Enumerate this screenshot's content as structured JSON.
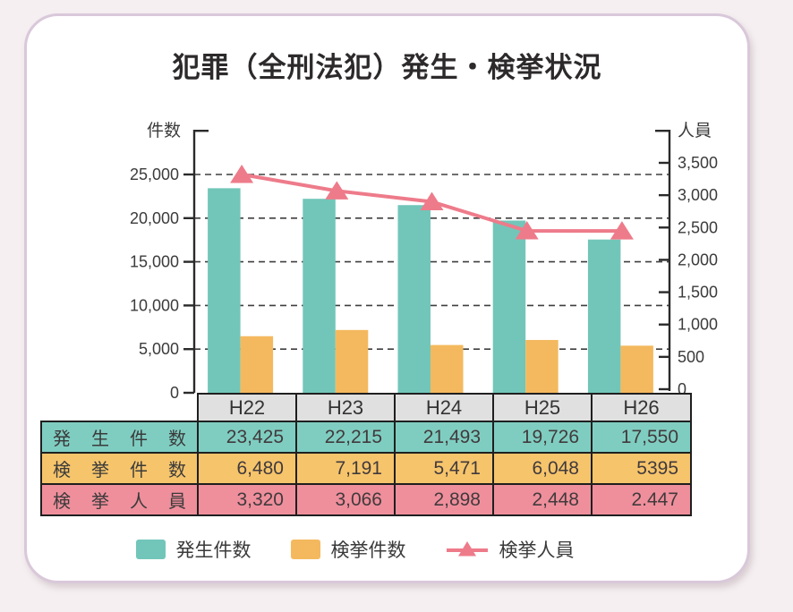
{
  "title": "犯罪（全刑法犯）発生・検挙状況",
  "chart_data": {
    "type": "bar+line",
    "categories": [
      "H22",
      "H23",
      "H24",
      "H25",
      "H26"
    ],
    "series": [
      {
        "key": "occurred-cases",
        "name": "発生件数",
        "type": "bar",
        "axis": "left",
        "color": "#72c6b9",
        "values": [
          23425,
          22215,
          21493,
          19726,
          17550
        ]
      },
      {
        "key": "cleared-cases",
        "name": "検挙件数",
        "type": "bar",
        "axis": "left",
        "color": "#f4b95e",
        "values": [
          6480,
          7191,
          5471,
          6048,
          5395
        ]
      },
      {
        "key": "cleared-persons",
        "name": "検挙人員",
        "type": "line",
        "axis": "right",
        "color": "#ee7b8a",
        "marker": "triangle-up",
        "values": [
          3320,
          3066,
          2898,
          2448,
          2447
        ]
      }
    ],
    "left_axis": {
      "label": "件数",
      "min": 0,
      "max": 25000,
      "step": 5000,
      "tick_labels": [
        "0",
        "5,000",
        "10,000",
        "15,000",
        "20,000",
        "25,000"
      ]
    },
    "right_axis": {
      "label": "人員",
      "min": 0,
      "max": 3500,
      "step": 500,
      "tick_labels": [
        "0",
        "500",
        "1,000",
        "1,500",
        "2,000",
        "2,500",
        "3,000",
        "3,500"
      ]
    },
    "grid": "horizontal-dashed-at-left-axis-ticks",
    "legend_position": "bottom"
  },
  "table": {
    "column_headers": [
      "H22",
      "H23",
      "H24",
      "H25",
      "H26"
    ],
    "rows": [
      {
        "key": "occurred-cases",
        "label": "発生件数",
        "color": "#7fcdc1",
        "values": [
          "23,425",
          "22,215",
          "21,493",
          "19,726",
          "17,550"
        ]
      },
      {
        "key": "cleared-cases",
        "label": "検挙件数",
        "color": "#f6c46b",
        "values": [
          "6,480",
          "7,191",
          "5,471",
          "6,048",
          "5395"
        ]
      },
      {
        "key": "cleared-persons",
        "label": "検挙人員",
        "color": "#ef8f9c",
        "values": [
          "3,320",
          "3,066",
          "2,898",
          "2,448",
          "2.447"
        ]
      }
    ]
  },
  "legend": {
    "items": [
      {
        "key": "occurred-cases",
        "label": "発生件数",
        "marker": "square",
        "color": "#72c6b9"
      },
      {
        "key": "cleared-cases",
        "label": "検挙件数",
        "marker": "square",
        "color": "#f4b95e"
      },
      {
        "key": "cleared-persons",
        "label": "検挙人員",
        "marker": "triangle-line",
        "color": "#ee7b8a"
      }
    ]
  },
  "colors": {
    "page_bg": "#f5eff1",
    "card_bg": "#ffffff",
    "card_border": "#d9c8da",
    "table_border": "#1f1f1f",
    "header_bg": "#e0e0e0",
    "grid_line": "#3f3f3f",
    "axis_line": "#2a2a2a",
    "text": "#3b3b3b"
  }
}
